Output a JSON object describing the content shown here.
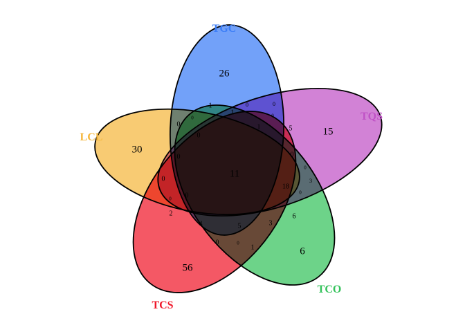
{
  "sets": [
    {
      "key": "TGC",
      "label": "TGC",
      "color": "#3b7df7"
    },
    {
      "key": "TQS",
      "label": "TQS",
      "color": "#c052c6"
    },
    {
      "key": "TCO",
      "label": "TCO",
      "color": "#34c25b"
    },
    {
      "key": "TCS",
      "label": "TCS",
      "color": "#f0172a"
    },
    {
      "key": "LCL",
      "label": "LCL",
      "color": "#f5b73d"
    }
  ],
  "regions": [
    {
      "id": "TGC-only",
      "value": "26"
    },
    {
      "id": "TQS-only",
      "value": "15"
    },
    {
      "id": "TCO-only",
      "value": "6"
    },
    {
      "id": "TCS-only",
      "value": "56"
    },
    {
      "id": "LCL-only",
      "value": "30"
    },
    {
      "id": "all-five",
      "value": "11"
    },
    {
      "id": "r-1a",
      "value": "1"
    },
    {
      "id": "r-0a",
      "value": "0"
    },
    {
      "id": "r-1b",
      "value": "1"
    },
    {
      "id": "r-0b",
      "value": "0"
    },
    {
      "id": "r-0c",
      "value": "0"
    },
    {
      "id": "r-1c",
      "value": "1"
    },
    {
      "id": "r-5",
      "value": "5"
    },
    {
      "id": "r-0d",
      "value": "0"
    },
    {
      "id": "r-0e",
      "value": "0"
    },
    {
      "id": "r-0f",
      "value": "0"
    },
    {
      "id": "r-0g",
      "value": "0"
    },
    {
      "id": "r-0h",
      "value": "0"
    },
    {
      "id": "r-0i",
      "value": "0"
    },
    {
      "id": "r-18",
      "value": "18"
    },
    {
      "id": "r-3a",
      "value": "3"
    },
    {
      "id": "r-0j",
      "value": "0"
    },
    {
      "id": "r-0k",
      "value": "0"
    },
    {
      "id": "r-6",
      "value": "6"
    },
    {
      "id": "r-2",
      "value": "2"
    },
    {
      "id": "r-4",
      "value": "4"
    },
    {
      "id": "r-5b",
      "value": "5"
    },
    {
      "id": "r-3b",
      "value": "3"
    },
    {
      "id": "r-0l",
      "value": "0"
    },
    {
      "id": "r-0m",
      "value": "0"
    },
    {
      "id": "r-1d",
      "value": "1"
    },
    {
      "id": "r-0n",
      "value": "0"
    },
    {
      "id": "r-0o",
      "value": "0"
    }
  ]
}
